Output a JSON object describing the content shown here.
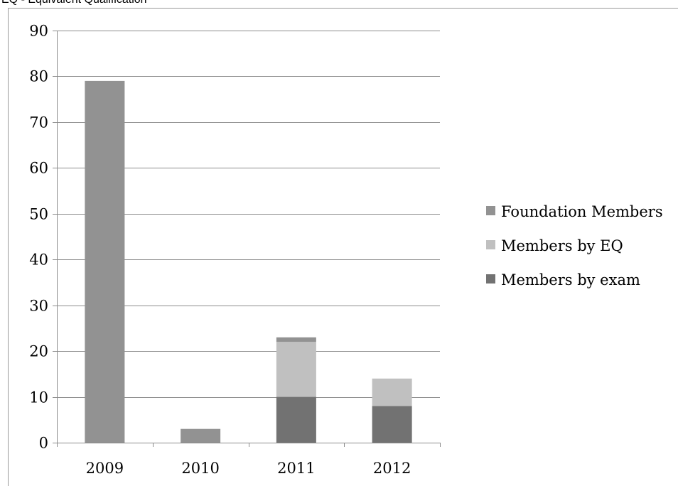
{
  "header_note": "EQ - Equivalent Qualification",
  "colors": {
    "foundation": "#929292",
    "eq": "#c0c0c0",
    "exam": "#727272",
    "gridline": "#8c8c8c",
    "axis": "#8c8c8c"
  },
  "chart_data": {
    "type": "bar",
    "stacked": true,
    "categories": [
      "2009",
      "2010",
      "2011",
      "2012"
    ],
    "series": [
      {
        "name": "Members by exam",
        "color_key": "exam",
        "values": [
          0,
          0,
          10,
          8
        ]
      },
      {
        "name": "Members by EQ",
        "color_key": "eq",
        "values": [
          0,
          0,
          12,
          6
        ]
      },
      {
        "name": "Foundation Members",
        "color_key": "foundation",
        "values": [
          79,
          3,
          1,
          0
        ]
      }
    ],
    "legend_order": [
      "Foundation Members",
      "Members by EQ",
      "Members by exam"
    ],
    "legend_position": "right",
    "ylim": [
      0,
      90
    ],
    "yticks": [
      0,
      10,
      20,
      30,
      40,
      50,
      60,
      70,
      80,
      90
    ],
    "grid": true
  }
}
